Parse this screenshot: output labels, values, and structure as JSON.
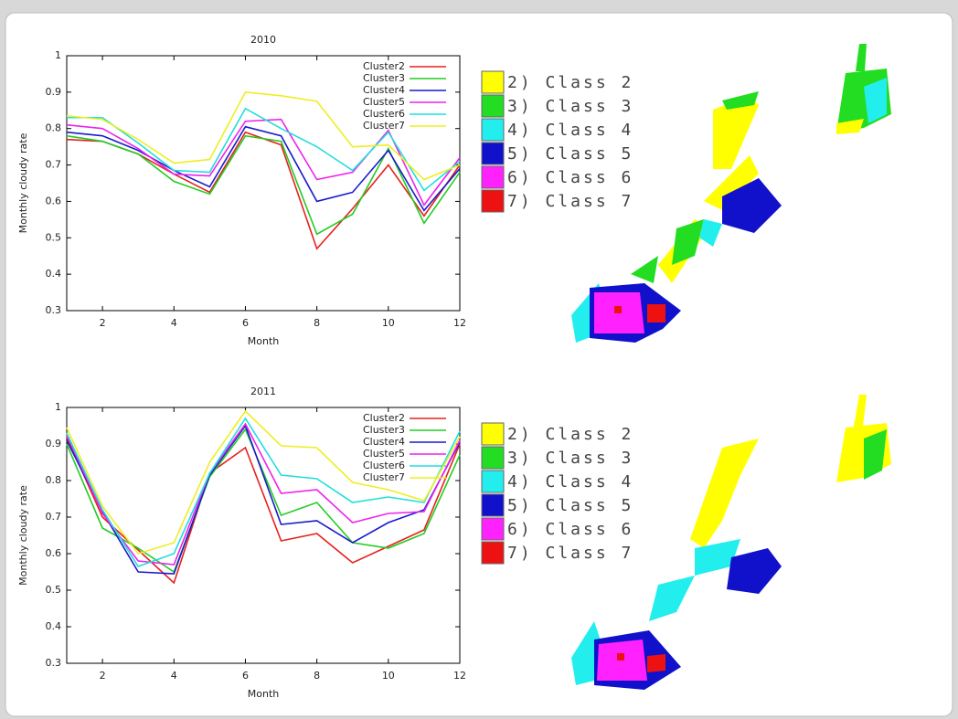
{
  "chart_data": [
    {
      "type": "line",
      "title": "2010",
      "x_label": "Month",
      "y_label": "Monthly cloudy rate",
      "x": [
        1,
        2,
        3,
        4,
        5,
        6,
        7,
        8,
        9,
        10,
        11,
        12
      ],
      "xlim": [
        1,
        12
      ],
      "xticks": [
        2,
        4,
        6,
        8,
        10,
        12
      ],
      "ylim": [
        0.3,
        1
      ],
      "yticks": [
        0.3,
        0.4,
        0.5,
        0.6,
        0.7,
        0.8,
        0.9,
        1
      ],
      "legend": "upper right",
      "series": [
        {
          "name": "Cluster2",
          "color": "#e8201c",
          "values": [
            0.77,
            0.765,
            0.73,
            0.675,
            0.625,
            0.79,
            0.755,
            0.47,
            0.58,
            0.7,
            0.56,
            0.7
          ]
        },
        {
          "name": "Cluster3",
          "color": "#22cc22",
          "values": [
            0.78,
            0.765,
            0.73,
            0.655,
            0.62,
            0.78,
            0.765,
            0.51,
            0.565,
            0.745,
            0.54,
            0.68
          ]
        },
        {
          "name": "Cluster4",
          "color": "#1a1acc",
          "values": [
            0.79,
            0.78,
            0.74,
            0.685,
            0.64,
            0.805,
            0.78,
            0.6,
            0.625,
            0.74,
            0.575,
            0.69
          ]
        },
        {
          "name": "Cluster5",
          "color": "#ee22ee",
          "values": [
            0.81,
            0.8,
            0.745,
            0.675,
            0.67,
            0.82,
            0.825,
            0.66,
            0.68,
            0.795,
            0.59,
            0.72
          ]
        },
        {
          "name": "Cluster6",
          "color": "#22dddd",
          "values": [
            0.83,
            0.83,
            0.76,
            0.685,
            0.68,
            0.855,
            0.8,
            0.75,
            0.685,
            0.79,
            0.63,
            0.71
          ]
        },
        {
          "name": "Cluster7",
          "color": "#eeee22",
          "values": [
            0.835,
            0.825,
            0.77,
            0.705,
            0.715,
            0.9,
            0.89,
            0.875,
            0.75,
            0.755,
            0.66,
            0.7
          ]
        }
      ]
    },
    {
      "type": "line",
      "title": "2011",
      "x_label": "Month",
      "y_label": "Monthly cloudy rate",
      "x": [
        1,
        2,
        3,
        4,
        5,
        6,
        7,
        8,
        9,
        10,
        11,
        12
      ],
      "xlim": [
        1,
        12
      ],
      "xticks": [
        2,
        4,
        6,
        8,
        10,
        12
      ],
      "ylim": [
        0.3,
        1
      ],
      "yticks": [
        0.3,
        0.4,
        0.5,
        0.6,
        0.7,
        0.8,
        0.9,
        1
      ],
      "legend": "upper right",
      "series": [
        {
          "name": "Cluster2",
          "color": "#e8201c",
          "values": [
            0.92,
            0.7,
            0.61,
            0.52,
            0.82,
            0.89,
            0.635,
            0.655,
            0.575,
            0.62,
            0.665,
            0.9
          ]
        },
        {
          "name": "Cluster3",
          "color": "#22cc22",
          "values": [
            0.9,
            0.67,
            0.615,
            0.55,
            0.81,
            0.94,
            0.705,
            0.74,
            0.63,
            0.615,
            0.655,
            0.87
          ]
        },
        {
          "name": "Cluster4",
          "color": "#1a1acc",
          "values": [
            0.91,
            0.715,
            0.55,
            0.545,
            0.815,
            0.95,
            0.68,
            0.69,
            0.63,
            0.685,
            0.72,
            0.905
          ]
        },
        {
          "name": "Cluster5",
          "color": "#ee22ee",
          "values": [
            0.925,
            0.71,
            0.58,
            0.57,
            0.82,
            0.955,
            0.765,
            0.775,
            0.685,
            0.71,
            0.715,
            0.91
          ]
        },
        {
          "name": "Cluster6",
          "color": "#22dddd",
          "values": [
            0.93,
            0.72,
            0.565,
            0.6,
            0.82,
            0.97,
            0.815,
            0.805,
            0.74,
            0.755,
            0.74,
            0.935
          ]
        },
        {
          "name": "Cluster7",
          "color": "#eeee22",
          "values": [
            0.945,
            0.73,
            0.6,
            0.63,
            0.85,
            0.99,
            0.895,
            0.89,
            0.795,
            0.775,
            0.745,
            0.92
          ]
        }
      ]
    }
  ],
  "map_legends": [
    {
      "entries": [
        {
          "label": "2) Class 2",
          "color": "#ffff00"
        },
        {
          "label": "3) Class 3",
          "color": "#22dd22"
        },
        {
          "label": "4) Class 4",
          "color": "#22eeee"
        },
        {
          "label": "5) Class 5",
          "color": "#1111cc"
        },
        {
          "label": "6) Class 6",
          "color": "#ff22ff"
        },
        {
          "label": "7) Class 7",
          "color": "#ee1111"
        }
      ]
    },
    {
      "entries": [
        {
          "label": "2) Class 2",
          "color": "#ffff00"
        },
        {
          "label": "3) Class 3",
          "color": "#22dd22"
        },
        {
          "label": "4) Class 4",
          "color": "#22eeee"
        },
        {
          "label": "5) Class 5",
          "color": "#1111cc"
        },
        {
          "label": "6) Class 6",
          "color": "#ff22ff"
        },
        {
          "label": "7) Class 7",
          "color": "#ee1111"
        }
      ]
    }
  ]
}
